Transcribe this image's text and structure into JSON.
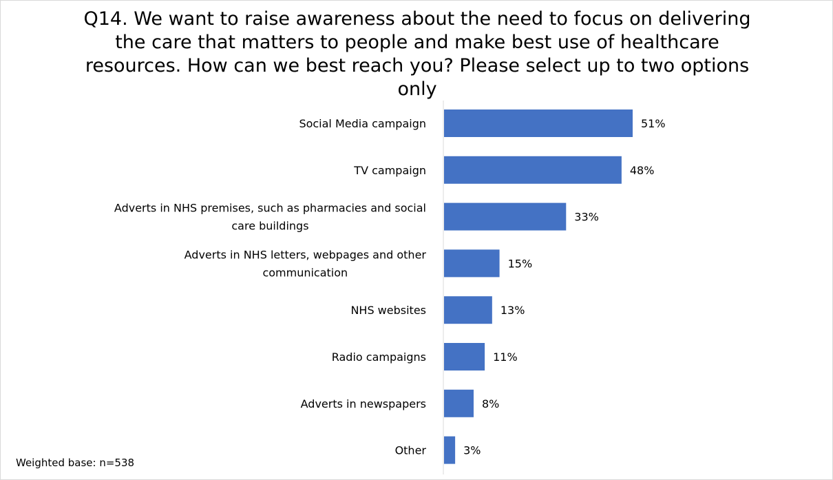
{
  "chart_data": {
    "type": "bar",
    "orientation": "horizontal",
    "title": "Q14. We want to raise awareness about the need to focus on delivering the care that matters to people and make best use of healthcare resources. How can we best reach you? Please select up to two options only",
    "categories": [
      "Social Media campaign",
      "TV campaign",
      "Adverts in NHS premises, such as pharmacies and social care buildings",
      "Adverts in NHS letters, webpages and other communication",
      "NHS websites",
      "Radio campaigns",
      "Adverts in newspapers",
      "Other"
    ],
    "category_lines": [
      [
        "Social Media campaign"
      ],
      [
        "TV campaign"
      ],
      [
        "Adverts in NHS premises, such as pharmacies and social",
        "care buildings"
      ],
      [
        "Adverts in NHS letters, webpages and other",
        "communication"
      ],
      [
        "NHS websites"
      ],
      [
        "Radio campaigns"
      ],
      [
        "Adverts in newspapers"
      ],
      [
        "Other"
      ]
    ],
    "values": [
      51,
      48,
      33,
      15,
      13,
      11,
      8,
      3
    ],
    "data_labels": [
      "51%",
      "48%",
      "33%",
      "15%",
      "13%",
      "11%",
      "8%",
      "3%"
    ],
    "unit": "%",
    "xlim": [
      0,
      100
    ],
    "grid": false,
    "legend": "none",
    "bar_color": "#4472c4",
    "footnote": "Weighted base: n=538"
  }
}
